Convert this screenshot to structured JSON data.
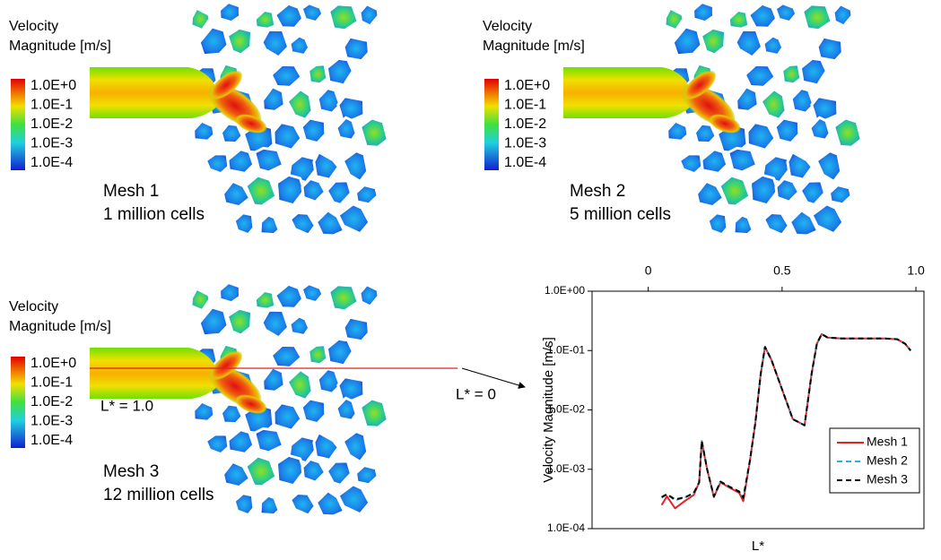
{
  "panels": [
    {
      "legend_title": [
        "Velocity",
        "Magnitude [m/s]"
      ],
      "colorbar_labels": [
        "1.0E+0",
        "1.0E-1",
        "1.0E-2",
        "1.0E-3",
        "1.0E-4"
      ],
      "mesh": [
        "Mesh 1",
        "1 million cells"
      ]
    },
    {
      "legend_title": [
        "Velocity",
        "Magnitude [m/s]"
      ],
      "colorbar_labels": [
        "1.0E+0",
        "1.0E-1",
        "1.0E-2",
        "1.0E-3",
        "1.0E-4"
      ],
      "mesh": [
        "Mesh 2",
        "5 million cells"
      ]
    },
    {
      "legend_title": [
        "Velocity",
        "Magnitude [m/s]"
      ],
      "colorbar_labels": [
        "1.0E+0",
        "1.0E-1",
        "1.0E-2",
        "1.0E-3",
        "1.0E-4"
      ],
      "mesh": [
        "Mesh 3",
        "12 million cells"
      ]
    }
  ],
  "annotations": [
    "L* = 1.0",
    "L* = 0"
  ],
  "chart_data": {
    "type": "line",
    "xlabel": "L*",
    "ylabel": "Velocity Magnitude [m/s]",
    "x": [
      0.05,
      0.07,
      0.1,
      0.14,
      0.17,
      0.19,
      0.2,
      0.22,
      0.245,
      0.27,
      0.3,
      0.34,
      0.355,
      0.38,
      0.4,
      0.42,
      0.436,
      0.46,
      0.5,
      0.54,
      0.584,
      0.61,
      0.63,
      0.648,
      0.67,
      0.72,
      0.8,
      0.88,
      0.93,
      0.96,
      0.98
    ],
    "series": [
      {
        "name": "Mesh 1",
        "color": "#e8201c",
        "style": "solid",
        "values": [
          0.00025,
          0.00035,
          0.00022,
          0.0003,
          0.00037,
          0.0006,
          0.0029,
          0.001,
          0.00034,
          0.0006,
          0.0005,
          0.0004,
          0.00029,
          0.0014,
          0.006,
          0.04,
          0.115,
          0.07,
          0.022,
          0.007,
          0.0055,
          0.04,
          0.13,
          0.19,
          0.165,
          0.16,
          0.16,
          0.16,
          0.155,
          0.13,
          0.1
        ]
      },
      {
        "name": "Mesh 2",
        "color": "#2ab0e0",
        "style": "dashed",
        "values": [
          0.00033,
          0.00038,
          0.0003,
          0.00034,
          0.0004,
          0.0006,
          0.003,
          0.001,
          0.00035,
          0.00062,
          0.00052,
          0.00042,
          0.00033,
          0.0014,
          0.006,
          0.04,
          0.115,
          0.07,
          0.022,
          0.007,
          0.0055,
          0.04,
          0.13,
          0.19,
          0.165,
          0.16,
          0.16,
          0.16,
          0.155,
          0.13,
          0.1
        ]
      },
      {
        "name": "Mesh 3",
        "color": "#000000",
        "style": "dashed",
        "values": [
          0.00034,
          0.00038,
          0.00031,
          0.00034,
          0.0004,
          0.0006,
          0.003,
          0.001,
          0.00035,
          0.00062,
          0.00052,
          0.00042,
          0.00033,
          0.0014,
          0.006,
          0.04,
          0.115,
          0.07,
          0.022,
          0.007,
          0.0055,
          0.04,
          0.13,
          0.19,
          0.165,
          0.16,
          0.16,
          0.16,
          0.155,
          0.13,
          0.1
        ]
      }
    ],
    "xlim": [
      -0.21,
      1.03
    ],
    "xticks": [
      0,
      0.5,
      {
        "value": 1,
        "label": "1.0"
      }
    ],
    "xaxis": "top",
    "ylim": [
      0.0001,
      1
    ],
    "log_y": true,
    "yticks": [
      {
        "value": 0.0001,
        "label": "1.0E-04"
      },
      {
        "value": 0.001,
        "label": "1.0E-03"
      },
      {
        "value": 0.01,
        "label": "1.0E-02"
      },
      {
        "value": 0.1,
        "label": "1.0E-01"
      },
      {
        "value": 1,
        "label": "1.0E+00"
      }
    ],
    "legend": "lower right"
  }
}
